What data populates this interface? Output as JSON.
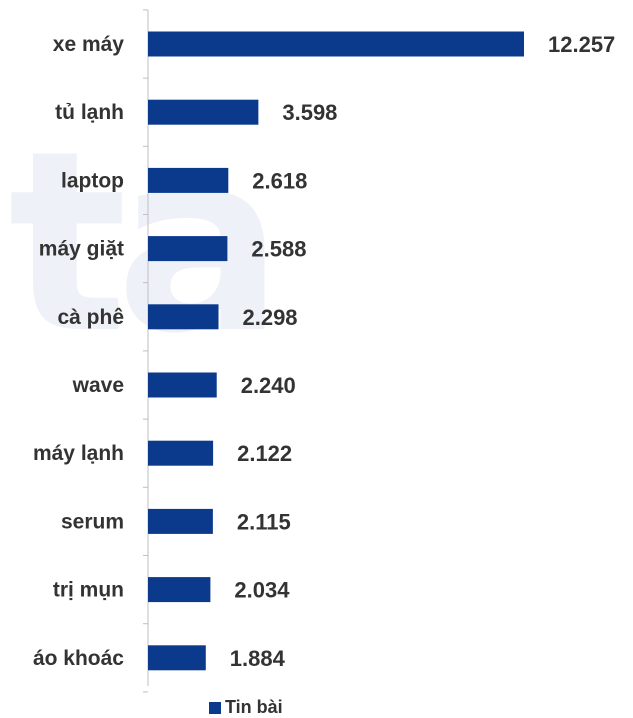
{
  "colors": {
    "bar": "#0b3a8c",
    "text": "#333333",
    "axis": "#bfbfbf",
    "watermark": "#eef1f8"
  },
  "watermark_text": "ta",
  "chart_data": {
    "type": "bar",
    "orientation": "horizontal",
    "categories": [
      "xe máy",
      "tủ lạnh",
      "laptop",
      "máy giặt",
      "cà phê",
      "wave",
      "máy lạnh",
      "serum",
      "trị mụn",
      "áo khoác"
    ],
    "value_labels": [
      "12.257",
      "3.598",
      "2.618",
      "2.588",
      "2.298",
      "2.240",
      "2.122",
      "2.115",
      "2.034",
      "1.884"
    ],
    "series": [
      {
        "name": "Tin bài",
        "values": [
          12257,
          3598,
          2618,
          2588,
          2298,
          2240,
          2122,
          2115,
          2034,
          1884
        ]
      }
    ],
    "title": "",
    "xlabel": "",
    "ylabel": "",
    "legend": "bottom",
    "grid": false
  }
}
